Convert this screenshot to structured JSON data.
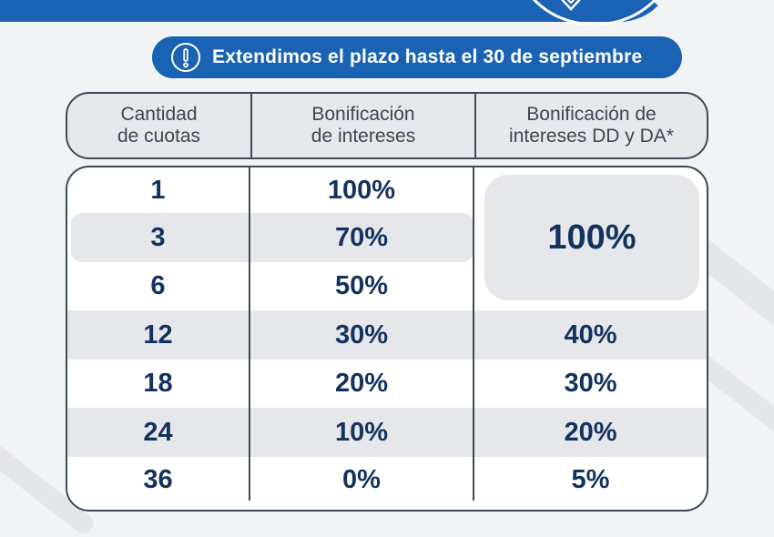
{
  "notice": {
    "text": "Extendimos el plazo hasta el 30 de septiembre",
    "icon": "exclamation-circle-icon"
  },
  "table": {
    "headers": [
      "Cantidad\nde cuotas",
      "Bonificación\nde intereses",
      "Bonificación de\nintereses  DD y DA*"
    ],
    "merged_value": "100%",
    "rows": [
      {
        "cuotas": "1",
        "bonificacion": "100%",
        "bonificacion_dd_da": ""
      },
      {
        "cuotas": "3",
        "bonificacion": "70%",
        "bonificacion_dd_da": ""
      },
      {
        "cuotas": "6",
        "bonificacion": "50%",
        "bonificacion_dd_da": ""
      },
      {
        "cuotas": "12",
        "bonificacion": "30%",
        "bonificacion_dd_da": "40%"
      },
      {
        "cuotas": "18",
        "bonificacion": "20%",
        "bonificacion_dd_da": "30%"
      },
      {
        "cuotas": "24",
        "bonificacion": "10%",
        "bonificacion_dd_da": "20%"
      },
      {
        "cuotas": "36",
        "bonificacion": "0%",
        "bonificacion_dd_da": "5%"
      }
    ]
  },
  "colors": {
    "brand_blue": "#1a63b4",
    "value_text": "#14325e",
    "header_text": "#3d4654",
    "row_band": "#e6e7ea"
  }
}
